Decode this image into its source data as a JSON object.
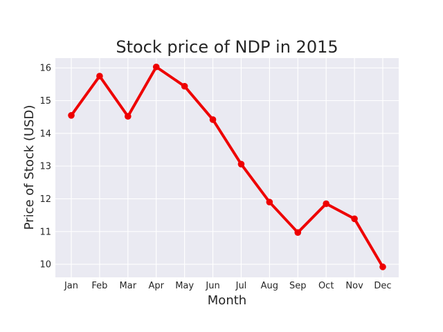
{
  "chart_data": {
    "type": "line",
    "title": "Stock price of NDP in 2015",
    "xlabel": "Month",
    "ylabel": "Price of Stock (USD)",
    "categories": [
      "Jan",
      "Feb",
      "Mar",
      "Apr",
      "May",
      "Jun",
      "Jul",
      "Aug",
      "Sep",
      "Oct",
      "Nov",
      "Dec"
    ],
    "series": [
      {
        "color": "#ee0000",
        "values": [
          14.55,
          15.75,
          14.52,
          16.03,
          15.44,
          14.42,
          13.06,
          11.9,
          10.97,
          11.85,
          11.39,
          9.92
        ]
      }
    ],
    "ylim": [
      9.6,
      16.3
    ],
    "yticks": [
      10,
      11,
      12,
      13,
      14,
      15,
      16
    ],
    "grid": true,
    "legend": "none",
    "background": "#eaeaf2"
  }
}
